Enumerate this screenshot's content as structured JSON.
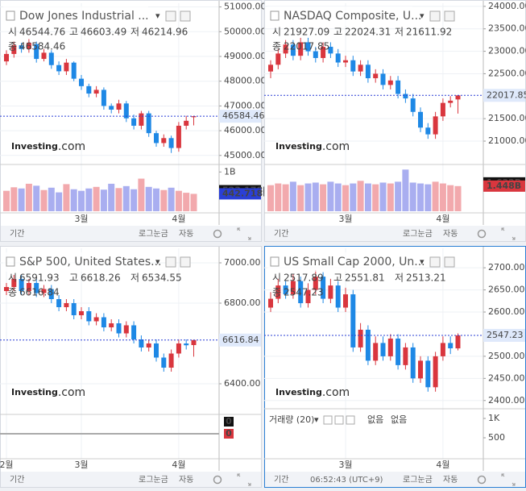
{
  "chart_data": [
    {
      "type": "candlestick",
      "title": "Dow Jones Industrial ...",
      "header_labels": [
        "시",
        "고",
        "저",
        "종"
      ],
      "ylim": [
        44700,
        51150
      ],
      "yticks": [
        {
          "value": 51000,
          "label": "51000.00"
        },
        {
          "value": 50000,
          "label": "50000.00"
        },
        {
          "value": 49000,
          "label": "49000.00"
        },
        {
          "value": 48000,
          "label": "48000.00"
        },
        {
          "value": 47000,
          "label": "47000.00"
        },
        {
          "value": 46000,
          "label": "46000.00"
        },
        {
          "value": 45000,
          "label": "45000.00"
        }
      ],
      "xticks": [
        {
          "value": 10,
          "label": "3월"
        },
        {
          "value": 23,
          "label": "4월"
        }
      ],
      "up_color": "#d9363e",
      "down_color": "#1e88e5",
      "volume_up_color": "#f2a9ad",
      "volume_down_color": "#a9aef0",
      "open": [
        48800,
        49100,
        49450,
        49300,
        49500,
        48900,
        49150,
        48650,
        48400,
        48750,
        48100,
        47800,
        47500,
        47650,
        47000,
        46850,
        47100,
        46500,
        46200,
        46700,
        45900,
        45500,
        45700,
        45300,
        46200,
        46544.76
      ],
      "high": [
        49250,
        49600,
        49550,
        49700,
        49600,
        49300,
        49250,
        48800,
        48900,
        48800,
        48250,
        47900,
        47800,
        47750,
        47100,
        47250,
        47200,
        46650,
        46800,
        46800,
        46000,
        45850,
        45800,
        46350,
        46600,
        46603.49
      ],
      "low": [
        48650,
        48950,
        49150,
        49150,
        48750,
        48800,
        48500,
        48250,
        48250,
        48000,
        47650,
        47350,
        47350,
        46850,
        46700,
        46700,
        46350,
        46050,
        46050,
        45750,
        45350,
        45350,
        45100,
        45150,
        46050,
        46214.96
      ],
      "close": [
        49100,
        49450,
        49300,
        49550,
        48900,
        49150,
        48650,
        48400,
        48750,
        48100,
        47800,
        47500,
        47650,
        47000,
        46850,
        47100,
        46500,
        46200,
        46700,
        45900,
        45500,
        45700,
        45300,
        46200,
        46400,
        46584.46
      ],
      "volume": [
        520,
        610,
        580,
        700,
        650,
        540,
        600,
        480,
        690,
        560,
        520,
        580,
        620,
        550,
        700,
        590,
        640,
        560,
        830,
        620,
        580,
        540,
        600,
        520,
        470,
        442.718
      ],
      "vlim": [
        0,
        1150
      ],
      "vticks": [
        {
          "value": 1000,
          "label": "1B"
        }
      ],
      "volume_markers": [
        {
          "value": 523.178,
          "label": "523.178M",
          "color": "#111111"
        },
        {
          "value": 442.718,
          "label": "442.718M",
          "color": "#2a3fd6"
        }
      ],
      "watermark": [
        "Investing",
        ".com"
      ],
      "toolbar": [
        "기간",
        "로그눈금",
        "자동"
      ]
    },
    {
      "type": "candlestick",
      "title": "NASDAQ Composite, U...",
      "header_labels": [
        "시",
        "고",
        "저",
        "종"
      ],
      "ylim": [
        20515,
        24070
      ],
      "yticks": [
        {
          "value": 24000,
          "label": "24000.00"
        },
        {
          "value": 23500,
          "label": "23500.00"
        },
        {
          "value": 23000,
          "label": "23000.00"
        },
        {
          "value": 22500,
          "label": "22500.00"
        },
        {
          "value": 21500,
          "label": "21500.00"
        },
        {
          "value": 21000,
          "label": "21000.00"
        }
      ],
      "xticks": [
        {
          "value": 10,
          "label": "3월"
        },
        {
          "value": 23,
          "label": "4월"
        }
      ],
      "up_color": "#d9363e",
      "down_color": "#1e88e5",
      "volume_up_color": "#f2a9ad",
      "volume_down_color": "#a9aef0",
      "open": [
        22550,
        22700,
        22950,
        23150,
        22900,
        23200,
        23000,
        22850,
        23100,
        22950,
        22750,
        22800,
        22550,
        22700,
        22400,
        22500,
        22250,
        22350,
        22050,
        21950,
        21650,
        21300,
        21150,
        21550,
        21850,
        21927.09
      ],
      "high": [
        22800,
        23050,
        23250,
        23250,
        23300,
        23300,
        23100,
        23200,
        23200,
        23050,
        22900,
        22900,
        22800,
        22800,
        22600,
        22600,
        22450,
        22450,
        22150,
        22050,
        21750,
        21400,
        21650,
        21950,
        22000,
        22024.31
      ],
      "low": [
        22400,
        22600,
        22850,
        22800,
        22800,
        22900,
        22750,
        22750,
        22850,
        22650,
        22650,
        22450,
        22450,
        22300,
        22300,
        22150,
        22150,
        21950,
        21850,
        21550,
        21200,
        21050,
        21050,
        21450,
        21750,
        21611.92
      ],
      "close": [
        22700,
        22950,
        23150,
        22900,
        23200,
        23000,
        22850,
        23100,
        22950,
        22750,
        22800,
        22550,
        22700,
        22400,
        22500,
        22250,
        22350,
        22050,
        21950,
        21650,
        21300,
        21150,
        21550,
        21850,
        21900,
        22017.85
      ],
      "volume": [
        1.5,
        1.6,
        1.55,
        1.7,
        1.5,
        1.6,
        1.65,
        1.55,
        1.7,
        1.6,
        1.5,
        1.6,
        1.75,
        1.6,
        1.55,
        1.65,
        1.6,
        1.7,
        2.4,
        1.65,
        1.6,
        1.55,
        1.7,
        1.6,
        1.5,
        1.448
      ],
      "vlim": [
        0,
        2.6
      ],
      "vticks": [],
      "volume_markers": [
        {
          "value": 1.632,
          "label": "1.632B",
          "color": "#111111"
        },
        {
          "value": 1.448,
          "label": "1.448B",
          "color": "#d9363e"
        }
      ],
      "watermark": [
        "Investing",
        ".com"
      ],
      "toolbar": [
        "기간",
        "로그눈금",
        "자동"
      ]
    },
    {
      "type": "candlestick",
      "title": "S&P 500, United States...",
      "header_labels": [
        "시",
        "고",
        "저",
        "종"
      ],
      "ylim": [
        6256,
        7072
      ],
      "yticks": [
        {
          "value": 7000,
          "label": "7000.00"
        },
        {
          "value": 6800,
          "label": "6800.00"
        },
        {
          "value": 6400,
          "label": "6400.00"
        }
      ],
      "xticks": [
        {
          "value": 0,
          "label": "2월"
        },
        {
          "value": 10,
          "label": "3월"
        },
        {
          "value": 23,
          "label": "4월"
        }
      ],
      "up_color": "#d9363e",
      "down_color": "#1e88e5",
      "open": [
        6860,
        6880,
        6920,
        6860,
        6900,
        6850,
        6870,
        6820,
        6780,
        6800,
        6740,
        6760,
        6710,
        6730,
        6680,
        6700,
        6650,
        6690,
        6620,
        6580,
        6600,
        6530,
        6480,
        6550,
        6600,
        6591.93
      ],
      "high": [
        6900,
        6940,
        6940,
        6920,
        6920,
        6890,
        6890,
        6840,
        6820,
        6820,
        6780,
        6780,
        6750,
        6750,
        6720,
        6720,
        6710,
        6710,
        6640,
        6620,
        6620,
        6550,
        6570,
        6620,
        6620,
        6618.26
      ],
      "low": [
        6840,
        6860,
        6840,
        6840,
        6830,
        6830,
        6800,
        6760,
        6760,
        6720,
        6720,
        6690,
        6690,
        6660,
        6660,
        6630,
        6630,
        6600,
        6560,
        6560,
        6510,
        6460,
        6460,
        6530,
        6570,
        6534.55
      ],
      "close": [
        6880,
        6920,
        6860,
        6900,
        6850,
        6870,
        6820,
        6780,
        6800,
        6740,
        6760,
        6710,
        6730,
        6680,
        6700,
        6650,
        6690,
        6620,
        6580,
        6600,
        6530,
        6480,
        6550,
        6600,
        6591,
        6616.84
      ],
      "sub_values": [
        0,
        0
      ],
      "watermark": [
        "Investing",
        ".com"
      ],
      "toolbar": [
        "기간",
        "로그눈금",
        "자동"
      ]
    },
    {
      "type": "candlestick",
      "title": "US Small Cap 2000, Un...",
      "header_labels": [
        "시",
        "고",
        "저",
        "종"
      ],
      "ylim": [
        2385,
        2744
      ],
      "yticks": [
        {
          "value": 2700,
          "label": "2700.00"
        },
        {
          "value": 2650,
          "label": "2650.00"
        },
        {
          "value": 2600,
          "label": "2600.00"
        },
        {
          "value": 2500,
          "label": "2500.00"
        },
        {
          "value": 2450,
          "label": "2450.00"
        },
        {
          "value": 2400,
          "label": "2400.00"
        }
      ],
      "xticks": [
        {
          "value": 10,
          "label": "3월"
        },
        {
          "value": 23,
          "label": "4월"
        }
      ],
      "up_color": "#d9363e",
      "down_color": "#1e88e5",
      "open": [
        2610,
        2630,
        2660,
        2640,
        2670,
        2620,
        2650,
        2680,
        2630,
        2660,
        2610,
        2640,
        2520,
        2560,
        2490,
        2530,
        2500,
        2540,
        2480,
        2520,
        2450,
        2490,
        2430,
        2500,
        2530,
        2517.89
      ],
      "high": [
        2645,
        2675,
        2670,
        2685,
        2680,
        2665,
        2695,
        2690,
        2675,
        2670,
        2655,
        2650,
        2575,
        2570,
        2545,
        2545,
        2550,
        2550,
        2530,
        2530,
        2500,
        2500,
        2510,
        2545,
        2545,
        2551.81
      ],
      "low": [
        2600,
        2620,
        2630,
        2630,
        2610,
        2610,
        2640,
        2620,
        2620,
        2600,
        2600,
        2510,
        2510,
        2480,
        2480,
        2490,
        2490,
        2470,
        2470,
        2440,
        2440,
        2420,
        2420,
        2490,
        2505,
        2513.21
      ],
      "close": [
        2630,
        2660,
        2640,
        2670,
        2620,
        2650,
        2680,
        2630,
        2660,
        2610,
        2640,
        2520,
        2560,
        2490,
        2530,
        2500,
        2540,
        2480,
        2520,
        2450,
        2490,
        2430,
        2500,
        2530,
        2518,
        2547.23
      ],
      "vlim": [
        0,
        1250
      ],
      "vticks": [
        {
          "value": 1000,
          "label": "1K"
        },
        500
      ],
      "volume_legend": [
        "거래량 (20)",
        "없음",
        "없음"
      ],
      "watermark": [
        "Investing",
        ".com"
      ],
      "toolbar": [
        "기간",
        "06:52:43 (UTC+9)",
        "로그눈금",
        "자동"
      ]
    }
  ]
}
